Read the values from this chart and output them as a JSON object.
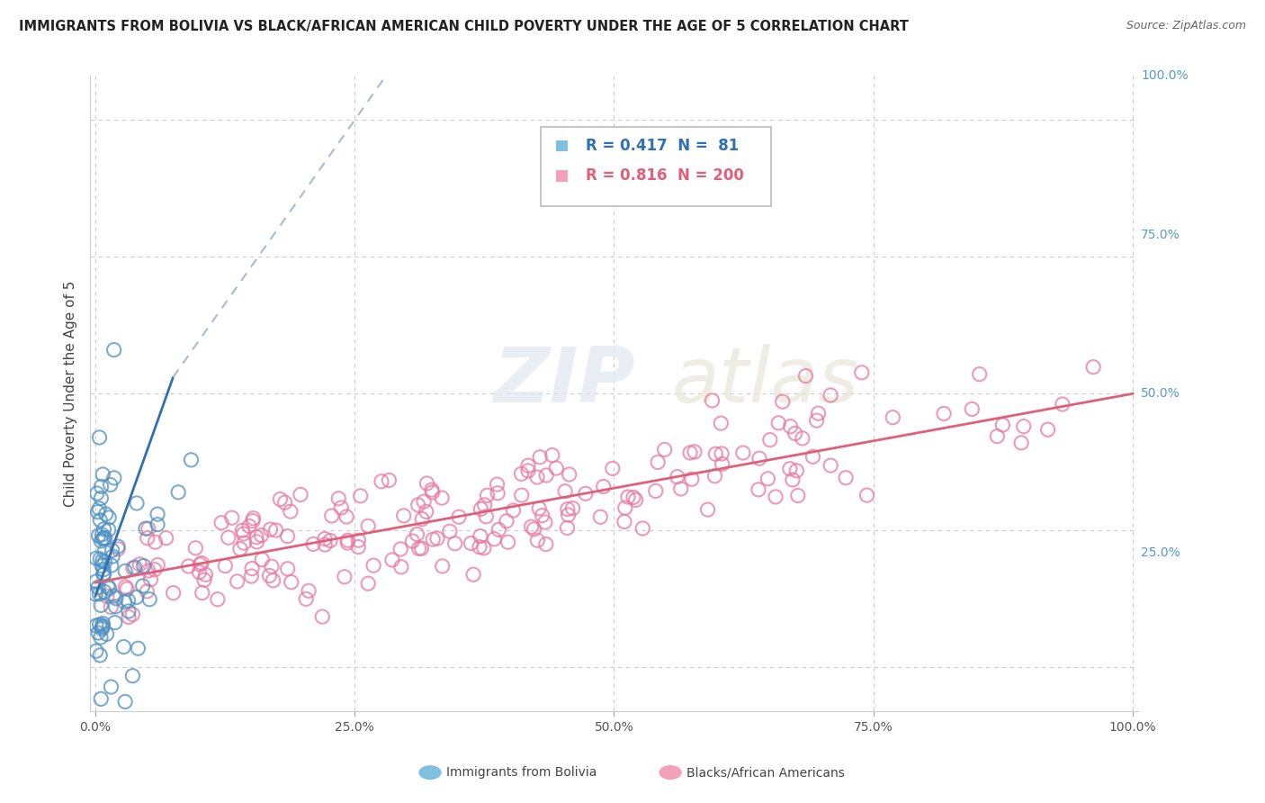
{
  "title": "IMMIGRANTS FROM BOLIVIA VS BLACK/AFRICAN AMERICAN CHILD POVERTY UNDER THE AGE OF 5 CORRELATION CHART",
  "source": "Source: ZipAtlas.com",
  "ylabel": "Child Poverty Under the Age of 5",
  "watermark_zip": "ZIP",
  "watermark_atlas": "atlas",
  "legend_blue_R": 0.417,
  "legend_blue_N": 81,
  "legend_pink_R": 0.816,
  "legend_pink_N": 200,
  "legend_label_blue": "Immigrants from Bolivia",
  "legend_label_pink": "Blacks/African Americans",
  "blue_color": "#7fbfdf",
  "pink_color": "#f4a0b8",
  "blue_line_color": "#3070b0",
  "pink_line_color": "#e0607a",
  "blue_marker_edge": "#5090c0",
  "pink_marker_edge": "#e878a0",
  "xlim": [
    0,
    1
  ],
  "ylim": [
    -0.05,
    1.05
  ],
  "background_color": "#ffffff",
  "grid_color": "#cccccc",
  "right_label_color": "#5599cc",
  "title_color": "#222222",
  "source_color": "#666666"
}
